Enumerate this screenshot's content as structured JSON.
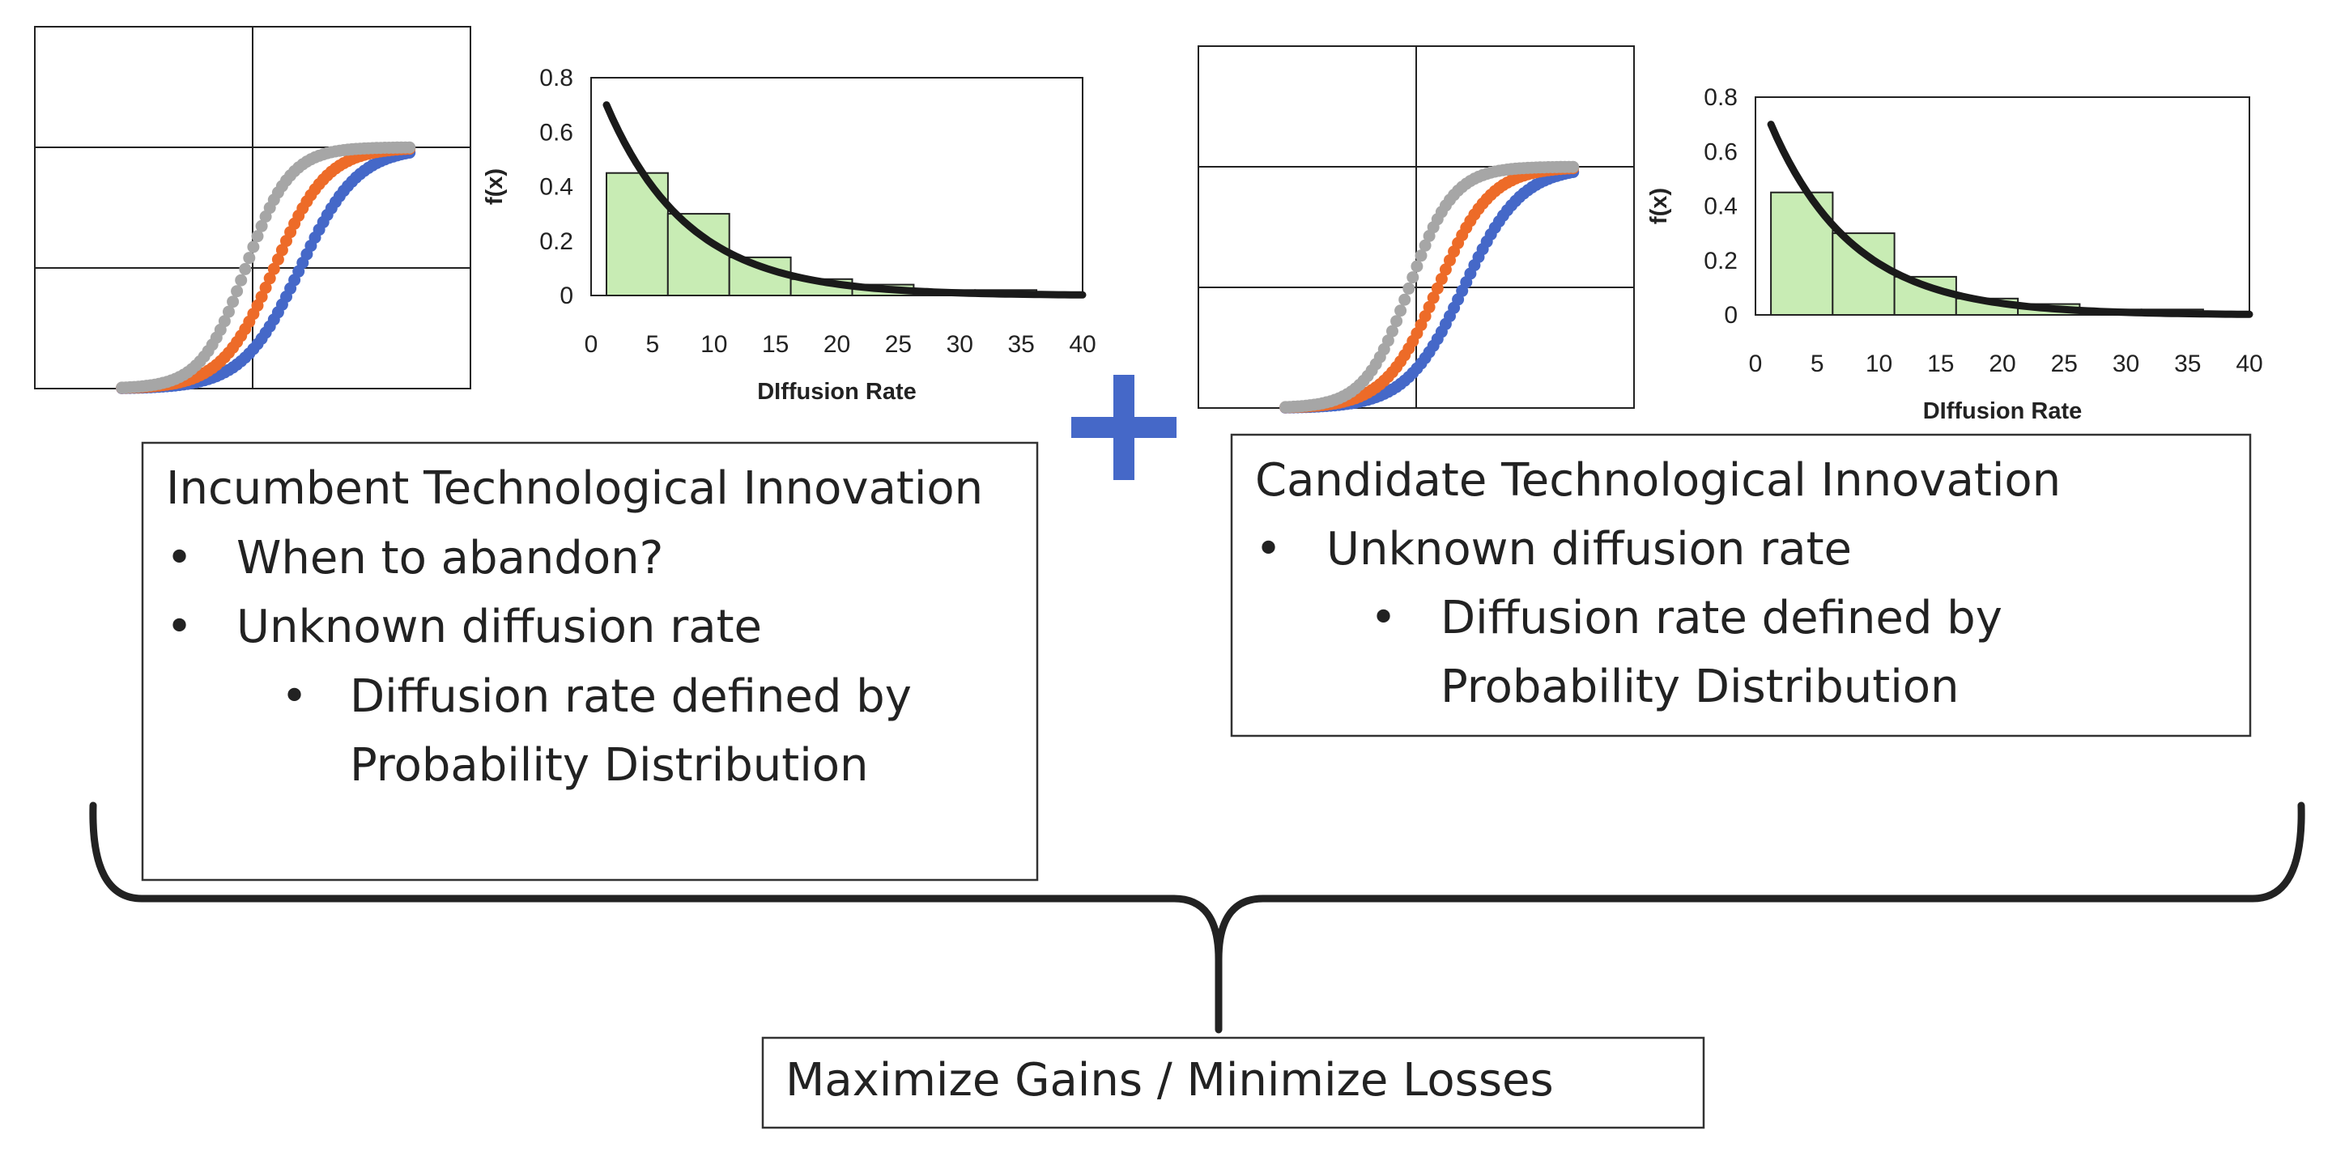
{
  "colors": {
    "curve_blue": "#4568c8",
    "curve_orange": "#ed6b28",
    "curve_gray": "#a6a6a6",
    "histogram_fill": "#c8ecb4",
    "density_line": "#1a1a1a",
    "plus_sign": "#4568c8",
    "box_border": "#333333",
    "text": "#222222"
  },
  "icons": {
    "plus": "plus-icon",
    "brace": "curly-brace"
  },
  "incumbent": {
    "title": "Incumbent Technological Innovation",
    "bullets": [
      {
        "text": "When to abandon?",
        "level": 1
      },
      {
        "text": "Unknown diffusion rate",
        "level": 1
      },
      {
        "text": "Diffusion rate defined by",
        "continuation": "Probability Distribution",
        "level": 2
      }
    ]
  },
  "candidate": {
    "title": "Candidate Technological Innovation",
    "bullets": [
      {
        "text": "Unknown diffusion rate",
        "level": 1
      },
      {
        "text": "Diffusion rate defined by",
        "continuation": "Probability Distribution",
        "level": 2
      }
    ]
  },
  "bullet_symbol": "•",
  "outcome": {
    "label": "Maximize Gains / Minimize Losses"
  },
  "chart_data": [
    {
      "type": "scatter",
      "description_role": "s-curve-adoption",
      "series": [
        {
          "color": "#4568c8",
          "midpoint": 0.62,
          "steepness": 10
        },
        {
          "color": "#ed6b28",
          "midpoint": 0.53,
          "steepness": 11
        },
        {
          "color": "#a6a6a6",
          "midpoint": 0.43,
          "steepness": 13
        }
      ],
      "xlim": [
        0,
        1
      ],
      "ylim": [
        0,
        1
      ],
      "grid": true,
      "axis_labels_shown": false
    },
    {
      "type": "bar",
      "title": "",
      "xlabel": "DIffusion Rate",
      "ylabel": "f(x)",
      "xlim": [
        0,
        40
      ],
      "ylim": [
        0,
        0.8
      ],
      "xticks": [
        "0",
        "5",
        "10",
        "15",
        "20",
        "25",
        "30",
        "35",
        "40"
      ],
      "yticks": [
        "0",
        "0.2",
        "0.4",
        "0.6",
        "0.8"
      ],
      "bins": [
        {
          "from": 1.25,
          "to": 6.25,
          "value": 0.45
        },
        {
          "from": 6.25,
          "to": 11.25,
          "value": 0.3
        },
        {
          "from": 11.25,
          "to": 16.25,
          "value": 0.14
        },
        {
          "from": 16.25,
          "to": 21.25,
          "value": 0.06
        },
        {
          "from": 21.25,
          "to": 26.25,
          "value": 0.04
        },
        {
          "from": 26.25,
          "to": 31.25,
          "value": 0.02
        },
        {
          "from": 31.25,
          "to": 36.25,
          "value": 0.02
        }
      ],
      "density_curve": {
        "type": "exponential",
        "start": [
          1.25,
          0.7
        ],
        "rate": 0.15
      }
    },
    {
      "type": "scatter",
      "description_role": "s-curve-adoption",
      "series": [
        {
          "color": "#4568c8",
          "midpoint": 0.62,
          "steepness": 10
        },
        {
          "color": "#ed6b28",
          "midpoint": 0.53,
          "steepness": 11
        },
        {
          "color": "#a6a6a6",
          "midpoint": 0.43,
          "steepness": 13
        }
      ],
      "xlim": [
        0,
        1
      ],
      "ylim": [
        0,
        1
      ],
      "grid": true,
      "axis_labels_shown": false
    },
    {
      "type": "bar",
      "title": "",
      "xlabel": "DIffusion Rate",
      "ylabel": "f(x)",
      "xlim": [
        0,
        40
      ],
      "ylim": [
        0,
        0.8
      ],
      "xticks": [
        "0",
        "5",
        "10",
        "15",
        "20",
        "25",
        "30",
        "35",
        "40"
      ],
      "yticks": [
        "0",
        "0.2",
        "0.4",
        "0.6",
        "0.8"
      ],
      "bins": [
        {
          "from": 1.25,
          "to": 6.25,
          "value": 0.45
        },
        {
          "from": 6.25,
          "to": 11.25,
          "value": 0.3
        },
        {
          "from": 11.25,
          "to": 16.25,
          "value": 0.14
        },
        {
          "from": 16.25,
          "to": 21.25,
          "value": 0.06
        },
        {
          "from": 21.25,
          "to": 26.25,
          "value": 0.04
        },
        {
          "from": 26.25,
          "to": 31.25,
          "value": 0.02
        },
        {
          "from": 31.25,
          "to": 36.25,
          "value": 0.02
        }
      ],
      "density_curve": {
        "type": "exponential",
        "start": [
          1.25,
          0.7
        ],
        "rate": 0.15
      }
    }
  ]
}
